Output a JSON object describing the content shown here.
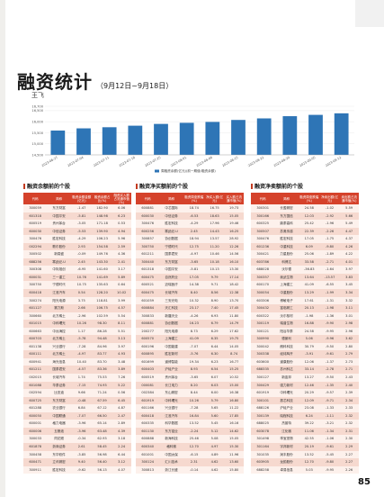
{
  "header": {
    "title": "融资统计",
    "date_range": "（9月12日~9月18日）",
    "author": "王飞"
  },
  "chart_data": {
    "type": "bar",
    "categories": [
      "2023-06-27",
      "2023-07-04",
      "2023-07-11",
      "2023-07-18",
      "2023-07-25",
      "2023-08-01",
      "2023-08-08",
      "2023-08-15",
      "2023-08-22",
      "2023-08-29",
      "2023-09-05",
      "2023-09-12"
    ],
    "values": [
      15600,
      15700,
      15750,
      15820,
      15900,
      15950,
      15990,
      16080,
      16150,
      16250,
      16310,
      16380
    ],
    "ylim": [
      14500,
      16700
    ],
    "yticks": [
      "16,700",
      "16,500",
      "16,000",
      "15,500",
      "15,000",
      "14,500"
    ],
    "legend": "周融资余额(亿元)(前一期值:融资余额)",
    "color": "#2e75b6"
  },
  "tables": [
    {
      "title": "融资余额前的个股",
      "headers": [
        "代码",
        "简称",
        "融资余额金额(亿元)",
        "融资余额占比(%)",
        "融资买入额占流通市值(%)"
      ],
      "rows": [
        [
          "300059",
          "东方财富",
          "-1.47",
          "182.90",
          "6.06"
        ],
        [
          "601318",
          "中国平安",
          "-5.81",
          "148.98",
          "6.23"
        ],
        [
          "600519",
          "贵州茅台",
          "-3.05",
          "171.18",
          "0.53"
        ],
        [
          "600030",
          "中信证券",
          "-5.53",
          "139.90",
          "4.94"
        ],
        [
          "300476",
          "胜宏科技",
          "-4.29",
          "106.23",
          "5.96"
        ],
        [
          "002294",
          "歌尔股份",
          "2.93",
          "154.58",
          "2.59"
        ],
        [
          "300502",
          "新易盛",
          "-0.09",
          "149.76",
          "4.36"
        ],
        [
          "688256",
          "寒武纪-U",
          "2.45",
          "143.30",
          "2.41"
        ],
        [
          "300308",
          "中际旭创",
          "-6.95",
          "141.60",
          "3.17"
        ],
        [
          "600031",
          "三一重工",
          "10.76",
          "141.69",
          "5.89"
        ],
        [
          "300750",
          "宁德时代",
          "10.75",
          "135.63",
          "0.64"
        ],
        [
          "600418",
          "江淮汽车",
          "0.54",
          "128.20",
          "10.02"
        ],
        [
          "300274",
          "阳光电源",
          "3.75",
          "118.81",
          "3.99"
        ],
        [
          "601127",
          "赛力斯",
          "2.66",
          "106.75",
          "4.57"
        ],
        [
          "300660",
          "北方稀土",
          "-2.96",
          "102.59",
          "5.54"
        ],
        [
          "601015",
          "中科曙光",
          "10.26",
          "98.30",
          "8.11"
        ],
        [
          "600663",
          "中远海控",
          "1.17",
          "86.28",
          "5.51"
        ],
        [
          "600703",
          "北方稀土",
          "-5.78",
          "94.48",
          "3.13"
        ],
        [
          "601138",
          "兴业银行",
          "-7.28",
          "84.96",
          "3.97"
        ],
        [
          "600111",
          "北方稀土",
          "-4.97",
          "83.77",
          "4.93"
        ],
        [
          "600941",
          "海光信息",
          "10.40",
          "83.70",
          "3.48"
        ],
        [
          "601211",
          "国泰君安",
          "-4.57",
          "83.36",
          "3.89"
        ],
        [
          "002015",
          "长城汽车",
          "1.74",
          "75.53",
          "7.26"
        ],
        [
          "601088",
          "华泰证券",
          "-7.15",
          "74.93",
          "5.22"
        ],
        [
          "002594",
          "比亚迪",
          "9.66",
          "71.24",
          "0.56"
        ],
        [
          "600725",
          "东方财富",
          "-0.48",
          "67.59",
          "6.45"
        ],
        [
          "601288",
          "农业银行",
          "6.84",
          "67.12",
          "4.87"
        ],
        [
          "600050",
          "中国联通",
          "-7.07",
          "66.50",
          "2.47"
        ],
        [
          "600001",
          "格力电器",
          "-3.96",
          "65.14",
          "2.89"
        ],
        [
          "600006",
          "五粮液",
          "-3.96",
          "63.48",
          "4.39"
        ],
        [
          "300033",
          "同花顺",
          "-0.34",
          "62.93",
          "3.18"
        ],
        [
          "601878",
          "浙商证券",
          "2.61",
          "58.45",
          "2.24"
        ],
        [
          "300458",
          "东华软件",
          "-3.85",
          "56.98",
          "6.44"
        ],
        [
          "600471",
          "立讯精密",
          "9.40",
          "56.40",
          "3.12"
        ],
        [
          "300911",
          "胜宏科技",
          "-9.62",
          "56.13",
          "4.07"
        ]
      ]
    },
    {
      "title": "融资净买额前的个股",
      "headers": [
        "代码",
        "简称",
        "融资周涨跌幅(%)",
        "净买入额(亿元)",
        "买入额占流通市值(%)"
      ],
      "rows": [
        [
          "600881",
          "中芯国际",
          "18.74",
          "16.75",
          "19.73"
        ],
        [
          "600030",
          "中信证券",
          "-6.53",
          "18.63",
          "15.05"
        ],
        [
          "300476",
          "胜宏科技",
          "-4.29",
          "17.96",
          "19.46"
        ],
        [
          "600256",
          "寒武纪-U",
          "2.45",
          "14.43",
          "16.25"
        ],
        [
          "300857",
          "协创数据",
          "18.94",
          "13.57",
          "28.92"
        ],
        [
          "300750",
          "宁德时代",
          "12.75",
          "11.20",
          "12.26"
        ],
        [
          "601211",
          "国泰君安",
          "-4.97",
          "10.46",
          "14.56"
        ],
        [
          "300440",
          "东方财富",
          "-3.65",
          "10.18",
          "16.10"
        ],
        [
          "601318",
          "中国平安",
          "-5.81",
          "10.13",
          "13.30"
        ],
        [
          "600475",
          "自然药业",
          "17.05",
          "9.79",
          "17.14"
        ],
        [
          "600521",
          "迈瑞医疗",
          "14.38",
          "9.71",
          "18.42"
        ],
        [
          "600475",
          "长城汽车",
          "8.40",
          "8.56",
          "12.38"
        ],
        [
          "601059",
          "三安光电",
          "10.32",
          "8.90",
          "13.70"
        ],
        [
          "600884",
          "天汇科技",
          "23.17",
          "7.40",
          "17.45"
        ],
        [
          "300833",
          "新疆天业",
          "-4.26",
          "6.93",
          "11.80"
        ],
        [
          "600881",
          "协创数据",
          "16.23",
          "6.79",
          "14.79"
        ],
        [
          "200277",
          "阳光电源",
          "8.73",
          "6.29",
          "17.62"
        ],
        [
          "600570",
          "上海建工",
          "41.09",
          "6.35",
          "19.75"
        ],
        [
          "600196",
          "中国能建",
          "-7.07",
          "6.44",
          "14.05"
        ],
        [
          "600895",
          "胜宏新材",
          "-5.76",
          "6.30",
          "8.74"
        ],
        [
          "601699",
          "道博智能",
          "19.34",
          "6.23",
          "16.77"
        ],
        [
          "600403",
          "沪硅产业",
          "8.93",
          "6.54",
          "15.25"
        ],
        [
          "600519",
          "贵州茅台",
          "-3.65",
          "6.07",
          "10.52"
        ],
        [
          "000081",
          "长江电力",
          "8.20",
          "6.03",
          "15.00"
        ],
        [
          "002384",
          "东山精密",
          "8.44",
          "6.00",
          "16.38"
        ],
        [
          "601919",
          "中科曙光",
          "10.26",
          "5.79",
          "16.80"
        ],
        [
          "601166",
          "兴业银行",
          "-7.28",
          "5.65",
          "11.22"
        ],
        [
          "600418",
          "江淮汽车",
          "16.84",
          "5.60",
          "17.85"
        ],
        [
          "600335",
          "科华数据",
          "13.52",
          "5.45",
          "16.16"
        ],
        [
          "601130",
          "东方锆业",
          "-2.24",
          "5.12",
          "14.62"
        ],
        [
          "600888",
          "新海科技",
          "25.46",
          "5.08",
          "15.05"
        ],
        [
          "600340",
          "格科微",
          "12.70",
          "4.97",
          "15.30"
        ],
        [
          "601001",
          "中国太保",
          "-6.15",
          "4.89",
          "11.96"
        ],
        [
          "300124",
          "汇川技术",
          "2.31",
          "4.62",
          "13.60"
        ],
        [
          "300813",
          "浙江长盛",
          "-0.14",
          "4.62",
          "15.80"
        ]
      ]
    },
    {
      "title": "融资净卖额前的个股",
      "headers": [
        "代码",
        "简称",
        "融资周涨跌幅(%)",
        "净卖出额(亿元)",
        "卖出额占流通市值(%)"
      ],
      "rows": [
        [
          "300301",
          "长盈精密",
          "24.58",
          "-1.02",
          "5.59"
        ],
        [
          "300166",
          "东方国信",
          "12.03",
          "-2.92",
          "5.66"
        ],
        [
          "600325",
          "鼎泰高科",
          "25.42",
          "-1.96",
          "5.49"
        ],
        [
          "300507",
          "苏奥传感",
          "22.39",
          "-2.26",
          "4.47"
        ],
        [
          "300476",
          "胜宏科技",
          "17.05",
          "-1.75",
          "4.37"
        ],
        [
          "601236",
          "中重科技",
          "6.09",
          "-9.80",
          "4.26"
        ],
        [
          "300421",
          "力星股份",
          "25.06",
          "-1.89",
          "4.22"
        ],
        [
          "603786",
          "科博达",
          "33.58",
          "-2.71",
          "4.01"
        ],
        [
          "688028",
          "沃尔德",
          "-36.83",
          "-1.64",
          "3.97"
        ],
        [
          "300357",
          "我武生物",
          "13.64",
          "-13.57",
          "3.83"
        ],
        [
          "600170",
          "上海建工",
          "41.09",
          "-6.55",
          "3.45"
        ],
        [
          "300054",
          "中重股份",
          "13.29",
          "-1.99",
          "3.34"
        ],
        [
          "603306",
          "博敏电子",
          "17.61",
          "-1.31",
          "3.32"
        ],
        [
          "300432",
          "富临精工",
          "20.13",
          "-1.98",
          "3.11"
        ],
        [
          "600322",
          "沃尔核材",
          "-1.98",
          "-1.36",
          "3.01"
        ],
        [
          "300119",
          "瑞普生物",
          "16.88",
          "-9.90",
          "2.98"
        ],
        [
          "300121",
          "阳谷华泰",
          "24.58",
          "-9.95",
          "2.96"
        ],
        [
          "300990",
          "德景利",
          "5.06",
          "-9.96",
          "3.62"
        ],
        [
          "300042",
          "朗科科技",
          "30.79",
          "-9.50",
          "2.80"
        ],
        [
          "300338",
          "经纬辉开",
          "-3.91",
          "-9.61",
          "2.79"
        ],
        [
          "603600",
          "道康股份",
          "12.06",
          "-1.37",
          "2.73"
        ],
        [
          "688335",
          "苏州科达",
          "33.14",
          "-2.78",
          "2.71"
        ],
        [
          "300127",
          "新宙邦",
          "13.27",
          "-9.50",
          "2.43"
        ],
        [
          "300429",
          "强力新材",
          "12.46",
          "-1.35",
          "2.40"
        ],
        [
          "601919",
          "中科曙光",
          "20.29",
          "-9.57",
          "2.39"
        ],
        [
          "300101",
          "振芯科技",
          "12.09",
          "-9.71",
          "2.34"
        ],
        [
          "688126",
          "沪硅产业",
          "23.08",
          "-1.33",
          "2.33"
        ],
        [
          "300139",
          "晓程科技",
          "6.24",
          "-1.11",
          "2.32"
        ],
        [
          "688025",
          "杰普特",
          "39.22",
          "-3.21",
          "2.32"
        ],
        [
          "603078",
          "江化微",
          "11.06",
          "-1.34",
          "2.31"
        ],
        [
          "301498",
          "乖宝宠物",
          "42.55",
          "-1.06",
          "2.30"
        ],
        [
          "301164",
          "宇邦新材",
          "20.19",
          "-9.61",
          "2.29"
        ],
        [
          "301035",
          "润丰股份",
          "13.52",
          "-5.45",
          "2.27"
        ],
        [
          "603905",
          "龙韵股份",
          "12.70",
          "-9.80",
          "2.27"
        ],
        [
          "688258",
          "卓易信息",
          "5.03",
          "-9.95",
          "2.26"
        ]
      ]
    }
  ],
  "page_number": "85"
}
